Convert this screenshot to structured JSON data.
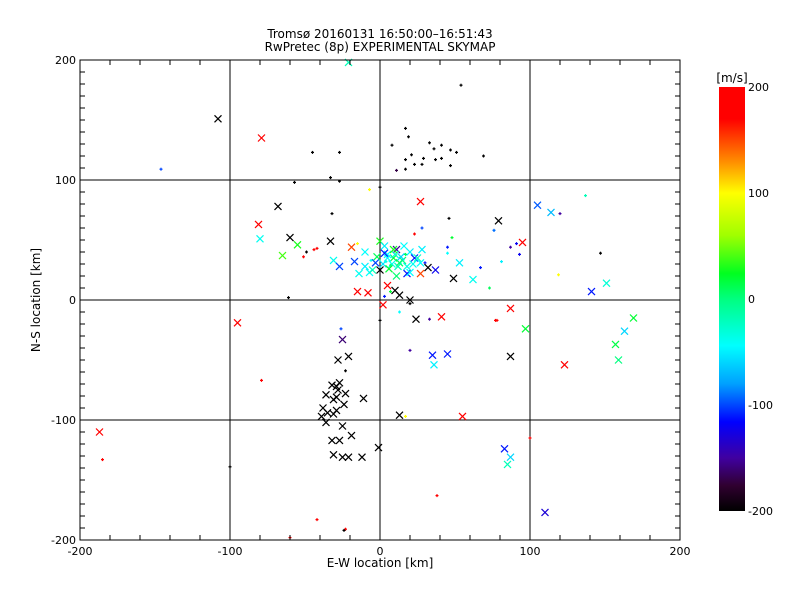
{
  "chart_data": {
    "type": "scatter",
    "title": "Tromsø 20160131 16:50:00–16:51:43",
    "subtitle": "RwPretec (8p) EXPERIMENTAL SKYMAP",
    "xlabel": "E-W location [km]",
    "ylabel": "N-S location [km]",
    "xlim": [
      -200,
      200
    ],
    "ylim": [
      -200,
      200
    ],
    "xticks": [
      "-200",
      "-100",
      "0",
      "100",
      "200"
    ],
    "yticks": [
      "200",
      "100",
      "0",
      "-100",
      "-200"
    ],
    "grid": true,
    "colorbar": {
      "label": "[m/s]",
      "range": [
        -200,
        200
      ],
      "ticks": [
        "200",
        "100",
        "0",
        "-100",
        "-200"
      ],
      "position": "right"
    },
    "marker_legend": {
      "x": "large cross",
      "+": "small mark"
    },
    "points": [
      [
        -108,
        151,
        -200,
        "x"
      ],
      [
        -68,
        78,
        -200,
        "x"
      ],
      [
        -60,
        52,
        -200,
        "x"
      ],
      [
        -33,
        49,
        -200,
        "x"
      ],
      [
        79,
        66,
        -200,
        "x"
      ],
      [
        87,
        -47,
        -200,
        "x"
      ],
      [
        -28,
        -50,
        -200,
        "x"
      ],
      [
        -21,
        -47,
        -200,
        "x"
      ],
      [
        -29,
        -72,
        -200,
        "x"
      ],
      [
        -32,
        -71,
        -200,
        "x"
      ],
      [
        -27,
        -69,
        -200,
        "x"
      ],
      [
        -28,
        -75,
        -200,
        "x"
      ],
      [
        -36,
        -79,
        -200,
        "x"
      ],
      [
        -23,
        -78,
        -200,
        "x"
      ],
      [
        -31,
        -83,
        -200,
        "x"
      ],
      [
        -29,
        -81,
        -200,
        "x"
      ],
      [
        -24,
        -87,
        -200,
        "x"
      ],
      [
        -11,
        -82,
        -200,
        "x"
      ],
      [
        -38,
        -90,
        -200,
        "x"
      ],
      [
        -29,
        -92,
        -200,
        "x"
      ],
      [
        -35,
        -94,
        -200,
        "x"
      ],
      [
        -31,
        -95,
        -200,
        "x"
      ],
      [
        -39,
        -97,
        -200,
        "x"
      ],
      [
        -36,
        -102,
        -200,
        "x"
      ],
      [
        -25,
        -105,
        -200,
        "x"
      ],
      [
        13,
        -96,
        -200,
        "x"
      ],
      [
        -19,
        -113,
        -200,
        "x"
      ],
      [
        -32,
        -117,
        -200,
        "x"
      ],
      [
        -27,
        -117,
        -200,
        "x"
      ],
      [
        -1,
        -123,
        -200,
        "x"
      ],
      [
        -31,
        -129,
        -200,
        "x"
      ],
      [
        -25,
        -131,
        -200,
        "x"
      ],
      [
        -21,
        -131,
        -200,
        "x"
      ],
      [
        -12,
        -131,
        -200,
        "x"
      ],
      [
        -23,
        -59,
        -200,
        "+"
      ],
      [
        -42,
        -183,
        200,
        "+"
      ],
      [
        -23,
        -191,
        200,
        "+"
      ],
      [
        17,
        -97,
        100,
        "+"
      ],
      [
        -25,
        -33,
        -160,
        "x"
      ],
      [
        54,
        179,
        -200,
        "+"
      ],
      [
        17,
        143,
        -200,
        "+"
      ],
      [
        19,
        136,
        -200,
        "+"
      ],
      [
        8,
        129,
        -200,
        "+"
      ],
      [
        33,
        131,
        -200,
        "+"
      ],
      [
        41,
        129,
        -200,
        "+"
      ],
      [
        36,
        126,
        -200,
        "+"
      ],
      [
        47,
        125,
        -200,
        "+"
      ],
      [
        51,
        123,
        -200,
        "+"
      ],
      [
        69,
        120,
        -200,
        "+"
      ],
      [
        21,
        121,
        -200,
        "+"
      ],
      [
        17,
        117,
        -200,
        "+"
      ],
      [
        29,
        118,
        -200,
        "+"
      ],
      [
        37,
        117,
        -200,
        "+"
      ],
      [
        41,
        118,
        -200,
        "+"
      ],
      [
        23,
        113,
        -200,
        "+"
      ],
      [
        28,
        113,
        -200,
        "+"
      ],
      [
        47,
        112,
        -200,
        "+"
      ],
      [
        17,
        109,
        -200,
        "+"
      ],
      [
        11,
        108,
        -170,
        "+"
      ],
      [
        105,
        79,
        -95,
        "x"
      ],
      [
        114,
        73,
        -70,
        "x"
      ],
      [
        120,
        72,
        -150,
        "+"
      ],
      [
        137,
        87,
        -20,
        "+"
      ],
      [
        76,
        58,
        -95,
        "+"
      ],
      [
        95,
        48,
        190,
        "x"
      ],
      [
        91,
        47,
        -120,
        "+"
      ],
      [
        87,
        44,
        -150,
        "+"
      ],
      [
        93,
        38,
        -120,
        "+"
      ],
      [
        81,
        32,
        -50,
        "+"
      ],
      [
        67,
        27,
        -110,
        "+"
      ],
      [
        73,
        10,
        10,
        "+"
      ],
      [
        147,
        39,
        -200,
        "+"
      ],
      [
        119,
        21,
        100,
        "+"
      ],
      [
        151,
        14,
        -30,
        "x"
      ],
      [
        141,
        7,
        -110,
        "x"
      ],
      [
        87,
        -7,
        190,
        "x"
      ],
      [
        77,
        -17,
        200,
        "+"
      ],
      [
        97,
        -24,
        20,
        "x"
      ],
      [
        169,
        -15,
        20,
        "x"
      ],
      [
        163,
        -26,
        -60,
        "x"
      ],
      [
        157,
        -37,
        15,
        "x"
      ],
      [
        159,
        -50,
        0,
        "x"
      ],
      [
        123,
        -54,
        190,
        "x"
      ],
      [
        100,
        -115,
        200,
        "+"
      ],
      [
        83,
        -124,
        -110,
        "x"
      ],
      [
        87,
        -131,
        -60,
        "x"
      ],
      [
        85,
        -137,
        -20,
        "x"
      ],
      [
        110,
        -177,
        -130,
        "x"
      ],
      [
        38,
        -163,
        200,
        "+"
      ],
      [
        -79,
        135,
        200,
        "x"
      ],
      [
        -146,
        109,
        -100,
        "+"
      ],
      [
        -21,
        198,
        -20,
        "x"
      ],
      [
        -81,
        63,
        200,
        "x"
      ],
      [
        -80,
        51,
        -40,
        "x"
      ],
      [
        -95,
        -19,
        190,
        "x"
      ],
      [
        -187,
        -110,
        200,
        "x"
      ],
      [
        -185,
        -133,
        200,
        "+"
      ],
      [
        -100,
        -139,
        -200,
        "+"
      ],
      [
        -79,
        -67,
        180,
        "+"
      ],
      [
        -60,
        -198,
        200,
        "+"
      ],
      [
        -24,
        -192,
        -200,
        "+"
      ],
      [
        55,
        -97,
        190,
        "x"
      ],
      [
        27,
        82,
        200,
        "x"
      ],
      [
        -27,
        99,
        -200,
        "+"
      ],
      [
        -33,
        102,
        -200,
        "+"
      ],
      [
        -57,
        98,
        -200,
        "+"
      ],
      [
        -45,
        123,
        -200,
        "+"
      ],
      [
        -27,
        123,
        -200,
        "+"
      ],
      [
        0,
        94,
        -200,
        "+"
      ],
      [
        -7,
        92,
        100,
        "+"
      ],
      [
        -65,
        37,
        40,
        "x"
      ],
      [
        -55,
        46,
        30,
        "x"
      ],
      [
        -42,
        43,
        200,
        "+"
      ],
      [
        -61,
        2,
        -200,
        "+"
      ],
      [
        0,
        49,
        30,
        "x"
      ],
      [
        -19,
        44,
        150,
        "x"
      ],
      [
        -15,
        47,
        100,
        "+"
      ],
      [
        -31,
        33,
        -40,
        "x"
      ],
      [
        -27,
        28,
        -100,
        "x"
      ],
      [
        -17,
        32,
        -100,
        "x"
      ],
      [
        -10,
        28,
        -50,
        "x"
      ],
      [
        -7,
        23,
        -45,
        "x"
      ],
      [
        5,
        38,
        -45,
        "x"
      ],
      [
        9,
        35,
        20,
        "x"
      ],
      [
        3,
        39,
        -110,
        "x"
      ],
      [
        11,
        42,
        -150,
        "x"
      ],
      [
        13,
        31,
        10,
        "x"
      ],
      [
        -3,
        31,
        -100,
        "x"
      ],
      [
        0,
        25,
        -200,
        "x"
      ],
      [
        20,
        40,
        -50,
        "x"
      ],
      [
        23,
        35,
        -110,
        "x"
      ],
      [
        27,
        31,
        -45,
        "x"
      ],
      [
        30,
        31,
        -110,
        "+"
      ],
      [
        37,
        25,
        -120,
        "x"
      ],
      [
        32,
        27,
        -200,
        "x"
      ],
      [
        18,
        22,
        -110,
        "x"
      ],
      [
        20,
        23,
        -45,
        "x"
      ],
      [
        27,
        22,
        150,
        "x"
      ],
      [
        49,
        18,
        -200,
        "x"
      ],
      [
        53,
        31,
        -50,
        "x"
      ],
      [
        62,
        17,
        -40,
        "x"
      ],
      [
        5,
        12,
        200,
        "x"
      ],
      [
        -15,
        7,
        200,
        "x"
      ],
      [
        -8,
        6,
        200,
        "x"
      ],
      [
        10,
        8,
        -200,
        "x"
      ],
      [
        13,
        4,
        -200,
        "x"
      ],
      [
        7,
        7,
        20,
        "+"
      ],
      [
        3,
        3,
        -110,
        "+"
      ],
      [
        20,
        0,
        -200,
        "x"
      ],
      [
        20,
        -3,
        -200,
        "+"
      ],
      [
        2,
        -4,
        200,
        "x"
      ],
      [
        24,
        -16,
        -200,
        "x"
      ],
      [
        41,
        -14,
        200,
        "x"
      ],
      [
        0,
        -17,
        -200,
        "+"
      ],
      [
        13,
        -10,
        -45,
        "+"
      ],
      [
        -26,
        -24,
        -100,
        "+"
      ],
      [
        33,
        -16,
        -150,
        "+"
      ],
      [
        78,
        -17,
        200,
        "+"
      ],
      [
        48,
        52,
        20,
        "+"
      ],
      [
        45,
        44,
        -110,
        "+"
      ],
      [
        45,
        39,
        -45,
        "+"
      ],
      [
        76,
        58,
        -90,
        "+"
      ],
      [
        -44,
        42,
        200,
        "+"
      ],
      [
        -51,
        36,
        200,
        "+"
      ],
      [
        -49,
        40,
        -200,
        "+"
      ],
      [
        28,
        60,
        -100,
        "+"
      ],
      [
        23,
        55,
        200,
        "+"
      ],
      [
        46,
        68,
        -200,
        "+"
      ],
      [
        -32,
        72,
        -200,
        "+"
      ],
      [
        20,
        -42,
        -150,
        "+"
      ],
      [
        35,
        -46,
        -110,
        "x"
      ],
      [
        45,
        -45,
        -110,
        "x"
      ],
      [
        36,
        -54,
        -50,
        "x"
      ],
      [
        8,
        30,
        -40,
        "x"
      ],
      [
        12,
        28,
        -20,
        "x"
      ],
      [
        5,
        35,
        -45,
        "x"
      ],
      [
        15,
        33,
        0,
        "x"
      ],
      [
        10,
        38,
        -30,
        "x"
      ],
      [
        2,
        30,
        -55,
        "x"
      ],
      [
        -2,
        36,
        10,
        "x"
      ],
      [
        18,
        28,
        -35,
        "x"
      ],
      [
        22,
        30,
        -40,
        "x"
      ],
      [
        6,
        26,
        20,
        "x"
      ],
      [
        14,
        36,
        -60,
        "x"
      ],
      [
        -5,
        25,
        -20,
        "x"
      ],
      [
        25,
        35,
        -25,
        "x"
      ],
      [
        9,
        42,
        30,
        "x"
      ],
      [
        3,
        45,
        -50,
        "x"
      ],
      [
        16,
        45,
        -45,
        "x"
      ],
      [
        -10,
        40,
        -45,
        "x"
      ],
      [
        11,
        20,
        5,
        "x"
      ],
      [
        -14,
        22,
        -40,
        "x"
      ],
      [
        28,
        42,
        -50,
        "x"
      ],
      [
        4,
        32,
        -35,
        "+"
      ],
      [
        7,
        29,
        0,
        "+"
      ],
      [
        -6,
        33,
        -45,
        "+"
      ],
      [
        17,
        38,
        10,
        "+"
      ]
    ]
  }
}
